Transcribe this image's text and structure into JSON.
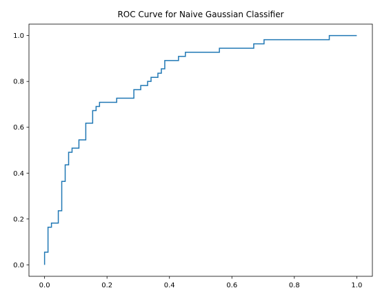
{
  "chart_data": {
    "type": "line",
    "title": "ROC Curve for Naive Gaussian Classifier",
    "xlabel": "",
    "ylabel": "",
    "xlim": [
      -0.05,
      1.05
    ],
    "ylim": [
      -0.05,
      1.05
    ],
    "x_ticks": [
      0.0,
      0.2,
      0.4,
      0.6,
      0.8,
      1.0
    ],
    "y_ticks": [
      0.0,
      0.2,
      0.4,
      0.6,
      0.8,
      1.0
    ],
    "x_tick_labels": [
      "0.0",
      "0.2",
      "0.4",
      "0.6",
      "0.8",
      "1.0"
    ],
    "y_tick_labels": [
      "0.0",
      "0.2",
      "0.4",
      "0.6",
      "0.8",
      "1.0"
    ],
    "grid": false,
    "series": [
      {
        "color": "#1f77b4",
        "x": [
          0.0,
          0.0,
          0.0,
          0.011,
          0.011,
          0.022,
          0.022,
          0.033,
          0.033,
          0.044,
          0.044,
          0.055,
          0.055,
          0.066,
          0.066,
          0.077,
          0.077,
          0.088,
          0.088,
          0.11,
          0.11,
          0.132,
          0.132,
          0.154,
          0.154,
          0.165,
          0.165,
          0.176,
          0.176,
          0.231,
          0.231,
          0.286,
          0.286,
          0.308,
          0.308,
          0.33,
          0.33,
          0.341,
          0.341,
          0.363,
          0.363,
          0.374,
          0.374,
          0.385,
          0.385,
          0.429,
          0.429,
          0.451,
          0.451,
          0.56,
          0.56,
          0.67,
          0.67,
          0.703,
          0.703,
          0.912,
          0.912,
          1.0
        ],
        "y": [
          0.0,
          0.055,
          0.055,
          0.055,
          0.164,
          0.164,
          0.182,
          0.182,
          0.182,
          0.182,
          0.236,
          0.236,
          0.364,
          0.364,
          0.436,
          0.436,
          0.491,
          0.491,
          0.509,
          0.509,
          0.545,
          0.545,
          0.618,
          0.618,
          0.673,
          0.673,
          0.691,
          0.691,
          0.709,
          0.709,
          0.727,
          0.727,
          0.764,
          0.764,
          0.782,
          0.782,
          0.8,
          0.8,
          0.818,
          0.818,
          0.836,
          0.836,
          0.855,
          0.855,
          0.891,
          0.891,
          0.909,
          0.909,
          0.927,
          0.927,
          0.945,
          0.945,
          0.964,
          0.964,
          0.982,
          0.982,
          1.0,
          1.0
        ]
      }
    ]
  }
}
